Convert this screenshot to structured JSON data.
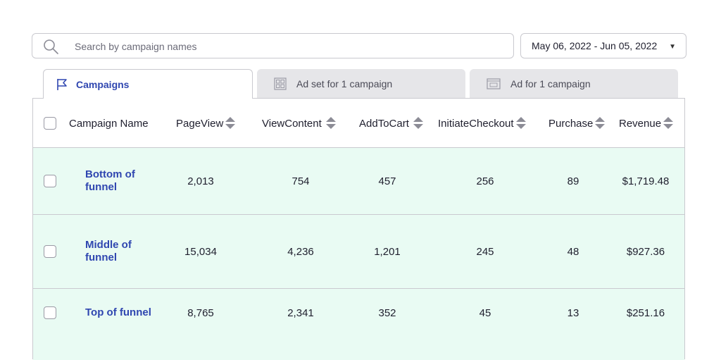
{
  "search": {
    "placeholder": "Search by campaign names",
    "icon": "search-icon"
  },
  "date_range": {
    "value": "May 06, 2022 - Jun 05, 2022",
    "caret": "▼"
  },
  "tabs": [
    {
      "label": "Campaigns",
      "icon": "flag-icon",
      "active": true
    },
    {
      "label": "Ad set for 1 campaign",
      "icon": "grid-icon",
      "active": false
    },
    {
      "label": "Ad for 1 campaign",
      "icon": "ad-icon",
      "active": false
    }
  ],
  "table": {
    "columns": [
      "Campaign Name",
      "PageView",
      "ViewContent",
      "AddToCart",
      "InitiateCheckout",
      "Purchase",
      "Revenue"
    ],
    "rows": [
      {
        "name": "Bottom of funnel",
        "pageview": "2,013",
        "viewcontent": "754",
        "addtocart": "457",
        "initiatecheckout": "256",
        "purchase": "89",
        "revenue": "$1,719.48"
      },
      {
        "name": "Middle of funnel",
        "pageview": "15,034",
        "viewcontent": "4,236",
        "addtocart": "1,201",
        "initiatecheckout": "245",
        "purchase": "48",
        "revenue": "$927.36"
      },
      {
        "name": "Top of funnel",
        "pageview": "8,765",
        "viewcontent": "2,341",
        "addtocart": "352",
        "initiatecheckout": "45",
        "purchase": "13",
        "revenue": "$251.16"
      }
    ]
  },
  "colors": {
    "accent": "#2f46b0",
    "row_bg": "#e9fbf3",
    "border": "#c9c9cf"
  }
}
